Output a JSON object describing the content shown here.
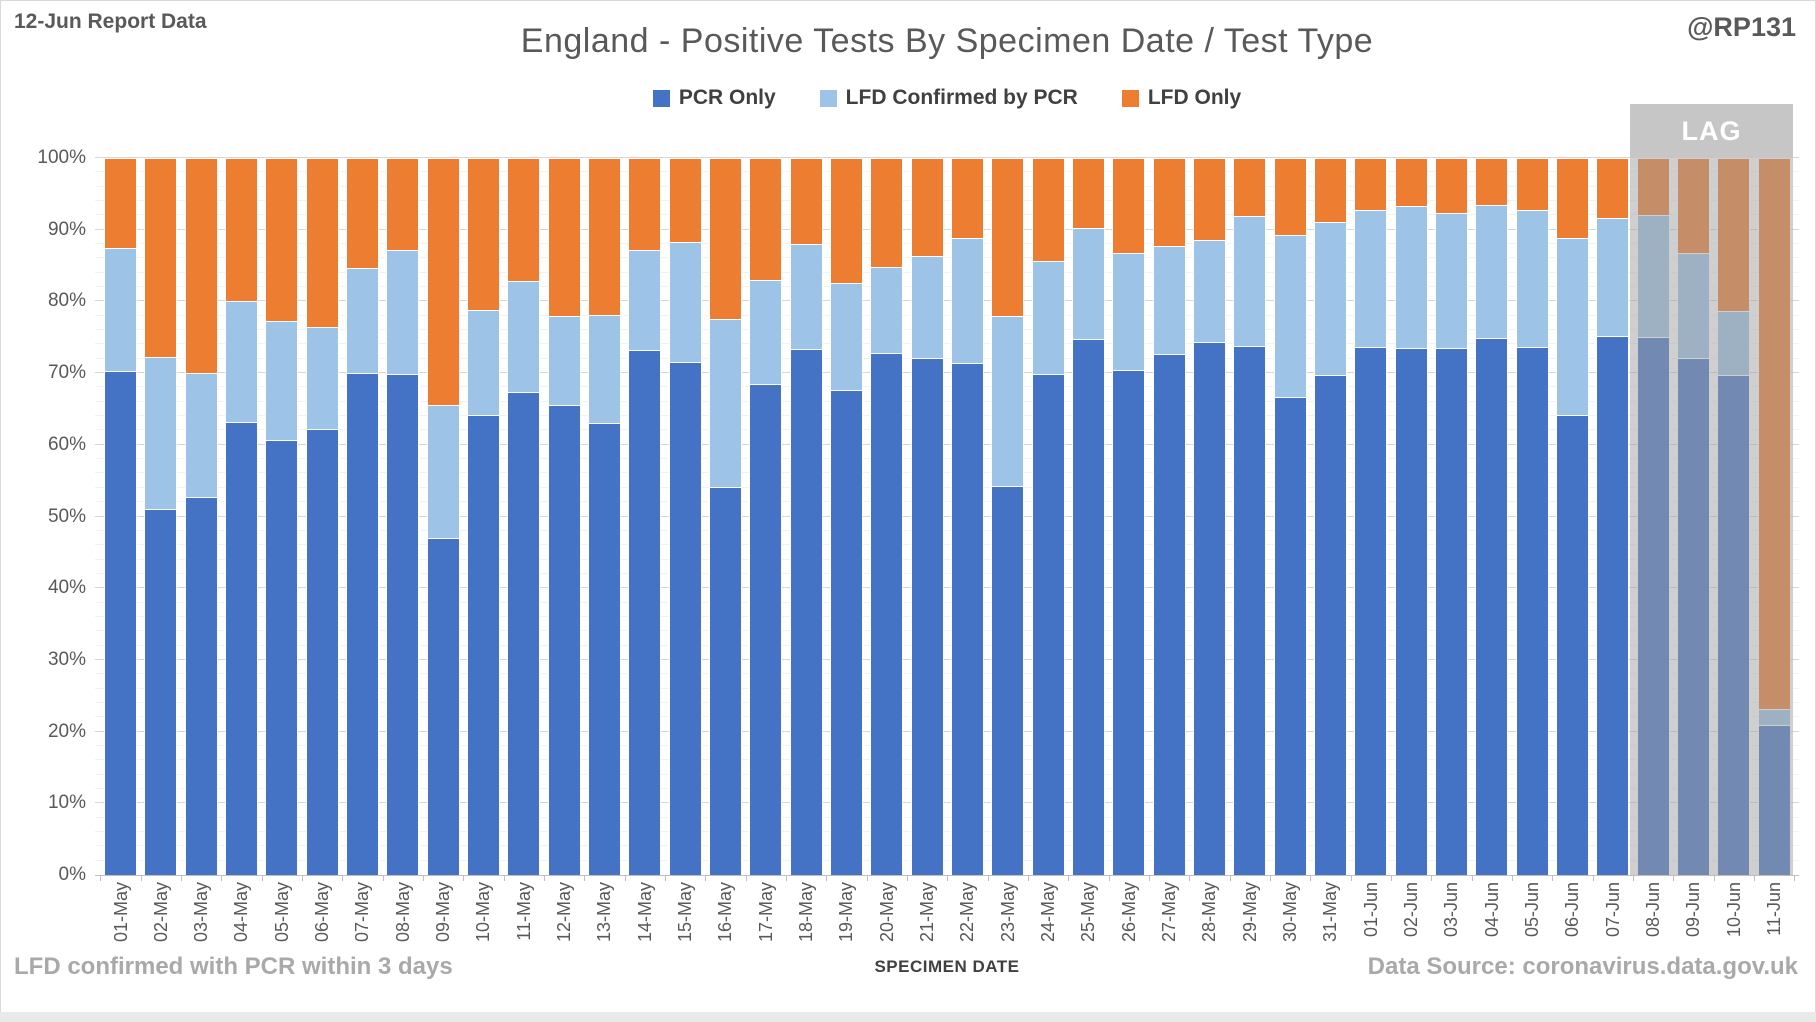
{
  "header": {
    "report_label": "12-Jun Report Data",
    "title": "England - Positive Tests By Specimen Date / Test Type",
    "handle": "@RP131"
  },
  "legend": [
    {
      "label": "PCR Only",
      "color": "#4472C4"
    },
    {
      "label": "LFD Confirmed by PCR",
      "color": "#9DC3E6"
    },
    {
      "label": "LFD Only",
      "color": "#ED7D31"
    }
  ],
  "lag": {
    "label": "LAG",
    "start_category": "08-Jun"
  },
  "y_axis": {
    "ticks": [
      "0%",
      "10%",
      "20%",
      "30%",
      "40%",
      "50%",
      "60%",
      "70%",
      "80%",
      "90%",
      "100%"
    ]
  },
  "footer": {
    "left_note": "LFD confirmed with PCR within 3 days",
    "x_axis_title": "SPECIMEN DATE",
    "source": "Data Source: coronavirus.data.gov.uk"
  },
  "chart_data": {
    "type": "bar",
    "stacked": true,
    "units": "percent",
    "title": "England - Positive Tests By Specimen Date / Test Type",
    "xlabel": "SPECIMEN DATE",
    "ylabel": "",
    "ylim": [
      0,
      100
    ],
    "grid": true,
    "legend_position": "top",
    "lag_start_index": 38,
    "categories": [
      "01-May",
      "02-May",
      "03-May",
      "04-May",
      "05-May",
      "06-May",
      "07-May",
      "08-May",
      "09-May",
      "10-May",
      "11-May",
      "12-May",
      "13-May",
      "14-May",
      "15-May",
      "16-May",
      "17-May",
      "18-May",
      "19-May",
      "20-May",
      "21-May",
      "22-May",
      "23-May",
      "24-May",
      "25-May",
      "26-May",
      "27-May",
      "28-May",
      "29-May",
      "30-May",
      "31-May",
      "01-Jun",
      "02-Jun",
      "03-Jun",
      "04-Jun",
      "05-Jun",
      "06-Jun",
      "07-Jun",
      "08-Jun",
      "09-Jun",
      "10-Jun",
      "11-Jun"
    ],
    "series": [
      {
        "name": "PCR Only",
        "color": "#4472C4",
        "values": [
          70.3,
          51.0,
          52.7,
          63.2,
          60.7,
          62.2,
          70.0,
          69.9,
          47.0,
          64.1,
          67.3,
          65.5,
          63.0,
          73.2,
          71.5,
          54.1,
          68.5,
          73.4,
          67.7,
          72.8,
          72.1,
          71.4,
          54.3,
          69.9,
          74.7,
          70.4,
          72.6,
          74.4,
          73.8,
          66.6,
          69.7,
          73.7,
          73.5,
          73.5,
          74.9,
          73.6,
          64.1,
          75.2,
          75.0,
          72.1,
          69.7,
          20.9
        ]
      },
      {
        "name": "LFD Confirmed by PCR",
        "color": "#9DC3E6",
        "values": [
          17.2,
          21.3,
          17.3,
          16.8,
          16.5,
          14.3,
          14.6,
          17.3,
          18.5,
          14.7,
          15.5,
          12.4,
          15.1,
          14.0,
          16.8,
          23.5,
          14.5,
          14.6,
          14.9,
          12.0,
          14.3,
          17.4,
          23.6,
          15.8,
          15.6,
          16.3,
          15.1,
          14.2,
          18.1,
          22.6,
          21.4,
          19.0,
          19.8,
          18.8,
          18.6,
          19.2,
          24.7,
          16.4,
          17.0,
          14.7,
          9.0,
          2.3
        ]
      },
      {
        "name": "LFD Only",
        "color": "#ED7D31",
        "values": [
          12.5,
          27.7,
          30.0,
          20.0,
          22.8,
          23.5,
          15.4,
          12.8,
          34.5,
          21.2,
          17.2,
          22.1,
          21.9,
          12.8,
          11.7,
          22.4,
          17.0,
          12.0,
          17.4,
          15.2,
          13.6,
          11.2,
          22.1,
          14.3,
          9.7,
          13.3,
          12.3,
          11.4,
          8.1,
          10.8,
          8.9,
          7.3,
          6.7,
          7.7,
          6.5,
          7.2,
          11.2,
          8.4,
          8.0,
          13.2,
          21.3,
          76.8
        ]
      }
    ]
  }
}
